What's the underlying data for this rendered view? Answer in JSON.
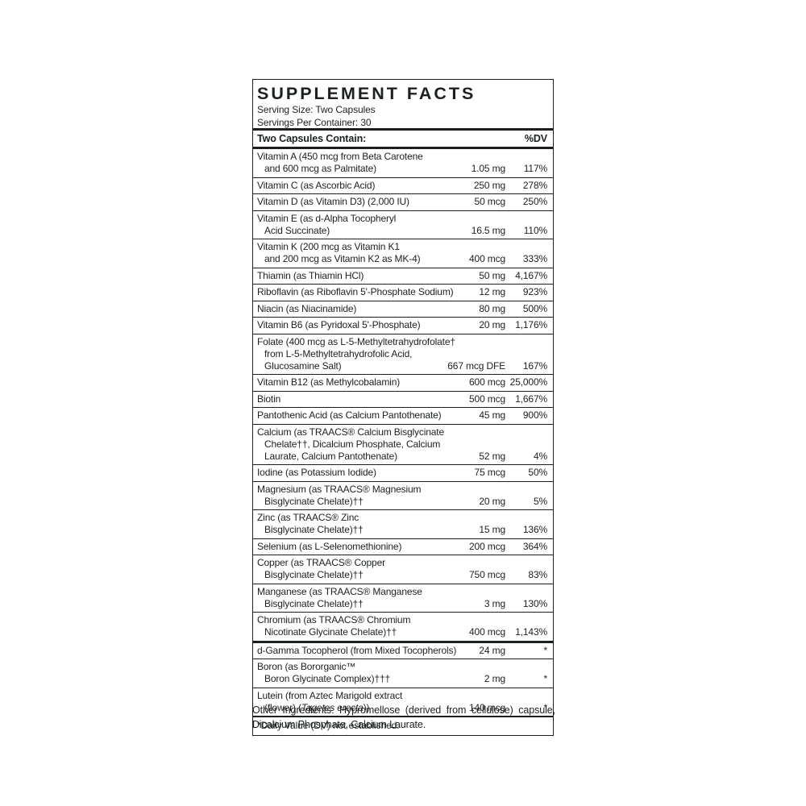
{
  "panel": {
    "title": "SUPPLEMENT FACTS",
    "serving_size": "Serving Size: Two Capsules",
    "servings_per_container": "Servings Per Container: 30",
    "column_header": "Two Capsules Contain:",
    "dv_header": "%DV",
    "rows": [
      {
        "lines": [
          "Vitamin A (450 mcg from Beta Carotene",
          "and 600 mcg as Palmitate)"
        ],
        "amount": "1.05 mg",
        "dv": "117%"
      },
      {
        "lines": [
          "Vitamin C (as Ascorbic Acid)"
        ],
        "amount": "250 mg",
        "dv": "278%"
      },
      {
        "lines": [
          "Vitamin D (as Vitamin D3) (2,000 IU)"
        ],
        "amount": "50 mcg",
        "dv": "250%"
      },
      {
        "lines": [
          "Vitamin E (as d-Alpha Tocopheryl",
          "Acid Succinate)"
        ],
        "amount": "16.5 mg",
        "dv": "110%"
      },
      {
        "lines": [
          "Vitamin K (200 mcg as Vitamin K1",
          "and 200 mcg as Vitamin K2 as MK-4)"
        ],
        "amount": "400 mcg",
        "dv": "333%"
      },
      {
        "lines": [
          "Thiamin (as Thiamin HCl)"
        ],
        "amount": "50 mg",
        "dv": "4,167%"
      },
      {
        "lines": [
          "Riboflavin (as Riboflavin 5'-Phosphate Sodium)"
        ],
        "amount": "12 mg",
        "dv": "923%"
      },
      {
        "lines": [
          "Niacin (as Niacinamide)"
        ],
        "amount": "80 mg",
        "dv": "500%"
      },
      {
        "lines": [
          "Vitamin B6 (as Pyridoxal 5'-Phosphate)"
        ],
        "amount": "20 mg",
        "dv": "1,176%"
      },
      {
        "lines": [
          "Folate (400 mcg as L-5-Methyltetrahydrofolate†",
          "from L-5-Methyltetrahydrofolic Acid,",
          "Glucosamine Salt)"
        ],
        "amount": "667 mcg DFE",
        "dv": "167%"
      },
      {
        "lines": [
          "Vitamin B12 (as Methylcobalamin)"
        ],
        "amount": "600 mcg",
        "dv": "25,000%"
      },
      {
        "lines": [
          "Biotin"
        ],
        "amount": "500 mcg",
        "dv": "1,667%"
      },
      {
        "lines": [
          "Pantothenic Acid (as Calcium Pantothenate)"
        ],
        "amount": "45 mg",
        "dv": "900%"
      },
      {
        "lines": [
          "Calcium (as TRAACS® Calcium Bisglycinate",
          "Chelate††, Dicalcium Phosphate, Calcium",
          "Laurate, Calcium Pantothenate)"
        ],
        "amount": "52 mg",
        "dv": "4%"
      },
      {
        "lines": [
          "Iodine (as Potassium Iodide)"
        ],
        "amount": "75 mcg",
        "dv": "50%"
      },
      {
        "lines": [
          "Magnesium (as TRAACS® Magnesium",
          "Bisglycinate Chelate)††"
        ],
        "amount": "20 mg",
        "dv": "5%"
      },
      {
        "lines": [
          "Zinc (as TRAACS® Zinc",
          "Bisglycinate Chelate)††"
        ],
        "amount": "15 mg",
        "dv": "136%"
      },
      {
        "lines": [
          "Selenium (as L-Selenomethionine)"
        ],
        "amount": "200 mcg",
        "dv": "364%"
      },
      {
        "lines": [
          "Copper (as TRAACS® Copper",
          "Bisglycinate Chelate)††"
        ],
        "amount": "750 mcg",
        "dv": "83%"
      },
      {
        "lines": [
          "Manganese (as TRAACS® Manganese",
          "Bisglycinate Chelate)††"
        ],
        "amount": "3 mg",
        "dv": "130%"
      },
      {
        "lines": [
          "Chromium (as TRAACS® Chromium",
          "Nicotinate Glycinate Chelate)††"
        ],
        "amount": "400 mcg",
        "dv": "1,143%"
      },
      {
        "lines": [
          "d-Gamma Tocopherol (from Mixed Tocopherols)"
        ],
        "amount": "24 mg",
        "dv": "*",
        "sep": "thick"
      },
      {
        "lines": [
          "Boron (as Bororganic™",
          "Boron Glycinate Complex)†††"
        ],
        "amount": "2 mg",
        "dv": "*"
      },
      {
        "lines": [
          "Lutein (from Aztec Marigold extract",
          "(flower) (Tagetes erecta))"
        ],
        "amount": "140 mcg",
        "dv": "*",
        "italicize": "Tagetes erecta"
      }
    ],
    "footnote": "*Daily Value (DV) not established."
  },
  "other_ingredients": "Other Ingredients: Hypromellose (derived from cellulose) capsule, Dicalcium Phosphate, Calcium Laurate."
}
